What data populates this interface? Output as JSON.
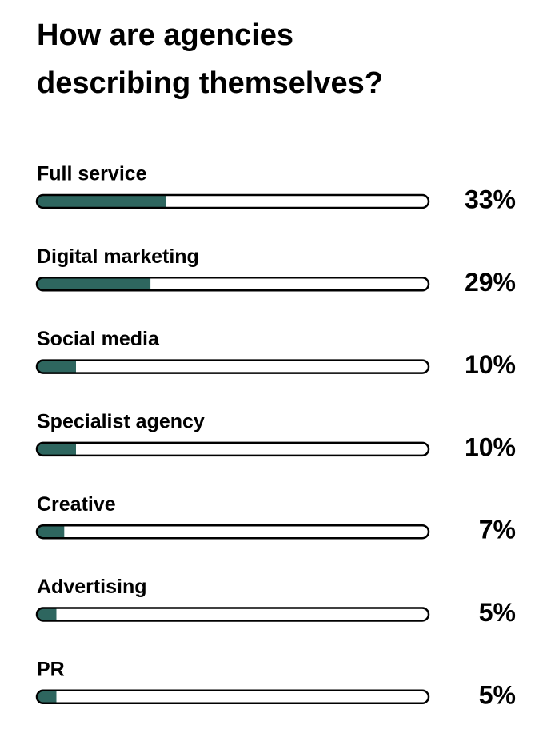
{
  "chart_data": {
    "type": "progress-bar",
    "title": "How are agencies describing themselves?",
    "categories": [
      "Full service",
      "Digital marketing",
      "Social media",
      "Specialist agency",
      "Creative",
      "Advertising",
      "PR"
    ],
    "values": [
      33,
      29,
      10,
      10,
      7,
      5,
      5
    ],
    "value_labels": [
      "33%",
      "29%",
      "10%",
      "10%",
      "7%",
      "5%",
      "5%"
    ],
    "color": "#2e665f",
    "xlim": [
      0,
      100
    ]
  }
}
